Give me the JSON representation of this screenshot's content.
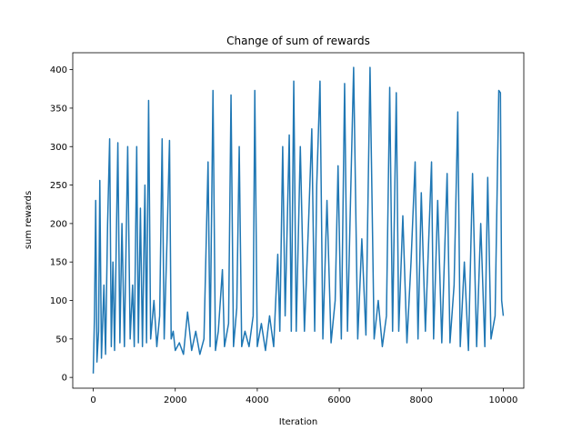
{
  "chart_data": {
    "type": "line",
    "title": "Change of sum of rewards",
    "x_label": "Iteration",
    "y_label": "sum rewards",
    "xlim": [
      -500,
      10500
    ],
    "ylim": [
      -14,
      422
    ],
    "xticks": [
      0,
      2000,
      4000,
      6000,
      8000,
      10000
    ],
    "yticks": [
      0,
      50,
      100,
      150,
      200,
      250,
      300,
      350,
      400
    ],
    "x": [
      0,
      30,
      60,
      90,
      130,
      160,
      200,
      260,
      300,
      350,
      400,
      440,
      480,
      520,
      600,
      650,
      700,
      760,
      840,
      900,
      960,
      1000,
      1060,
      1100,
      1150,
      1200,
      1260,
      1300,
      1350,
      1400,
      1480,
      1550,
      1620,
      1680,
      1730,
      1800,
      1860,
      1900,
      1950,
      2000,
      2100,
      2200,
      2300,
      2400,
      2500,
      2600,
      2700,
      2800,
      2850,
      2920,
      2980,
      3050,
      3150,
      3200,
      3300,
      3360,
      3420,
      3500,
      3560,
      3620,
      3700,
      3800,
      3900,
      3940,
      4000,
      4100,
      4200,
      4300,
      4400,
      4500,
      4550,
      4620,
      4680,
      4780,
      4830,
      4890,
      4950,
      5050,
      5150,
      5250,
      5330,
      5400,
      5450,
      5530,
      5600,
      5700,
      5800,
      5900,
      5970,
      6050,
      6130,
      6200,
      6350,
      6450,
      6550,
      6650,
      6750,
      6850,
      6950,
      7050,
      7150,
      7230,
      7300,
      7390,
      7450,
      7550,
      7650,
      7750,
      7850,
      7920,
      8000,
      8100,
      8250,
      8300,
      8400,
      8500,
      8630,
      8700,
      8800,
      8890,
      8950,
      9050,
      9150,
      9250,
      9350,
      9450,
      9550,
      9620,
      9700,
      9800,
      9890,
      9930,
      9960,
      10000
    ],
    "series": [
      {
        "color": "#1f77b4",
        "values": [
          5,
          80,
          230,
          20,
          60,
          256,
          25,
          120,
          30,
          200,
          310,
          40,
          150,
          35,
          305,
          45,
          200,
          40,
          300,
          50,
          120,
          40,
          300,
          45,
          220,
          40,
          250,
          45,
          360,
          50,
          100,
          40,
          80,
          310,
          50,
          180,
          308,
          50,
          60,
          35,
          45,
          30,
          85,
          35,
          60,
          30,
          50,
          280,
          40,
          373,
          35,
          60,
          140,
          40,
          70,
          367,
          40,
          90,
          300,
          40,
          60,
          40,
          80,
          373,
          40,
          70,
          35,
          80,
          40,
          160,
          60,
          300,
          80,
          315,
          60,
          385,
          60,
          300,
          60,
          200,
          323,
          60,
          250,
          385,
          50,
          230,
          45,
          100,
          275,
          50,
          382,
          60,
          403,
          50,
          180,
          55,
          403,
          50,
          100,
          40,
          80,
          377,
          60,
          370,
          60,
          210,
          45,
          150,
          280,
          50,
          240,
          60,
          280,
          50,
          230,
          45,
          265,
          45,
          120,
          345,
          40,
          150,
          35,
          265,
          40,
          200,
          40,
          260,
          50,
          80,
          373,
          370,
          100,
          80
        ]
      }
    ]
  }
}
